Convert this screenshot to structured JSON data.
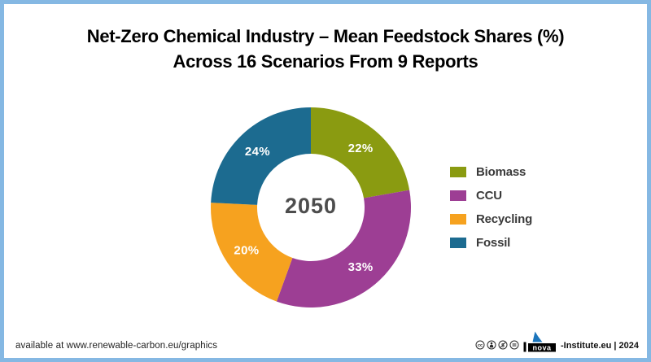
{
  "page": {
    "border_color": "#85b8e3",
    "background_color": "#ffffff"
  },
  "title": {
    "line1": "Net-Zero Chemical Industry – Mean Feedstock Shares (%)",
    "line2": "Across 16 Scenarios From 9 Reports"
  },
  "chart_data": {
    "type": "pie",
    "subtype": "donut",
    "title": "Net-Zero Chemical Industry – Mean Feedstock Shares (%) Across 16 Scenarios From 9 Reports",
    "center_label": "2050",
    "categories": [
      "Biomass",
      "CCU",
      "Recycling",
      "Fossil"
    ],
    "values": [
      22,
      33,
      20,
      24
    ],
    "labels": [
      "22%",
      "33%",
      "20%",
      "24%"
    ],
    "colors": [
      "#8a9b11",
      "#9d3e94",
      "#f6a21f",
      "#1c6b90"
    ],
    "start_angle_deg": 0,
    "direction": "clockwise",
    "legend_position": "right",
    "label_text_color": "#ffffff",
    "center_label_color": "#4d4d4d"
  },
  "footer": {
    "left_text": "available at www.renewable-carbon.eu/graphics",
    "license_icons": [
      "cc",
      "by",
      "nc",
      "nd"
    ],
    "brand": {
      "logo_text": "nova",
      "suffix_text": "-Institute.eu | 2024",
      "logo_flag_color": "#1b75bc",
      "logo_box_color": "#000000"
    }
  }
}
